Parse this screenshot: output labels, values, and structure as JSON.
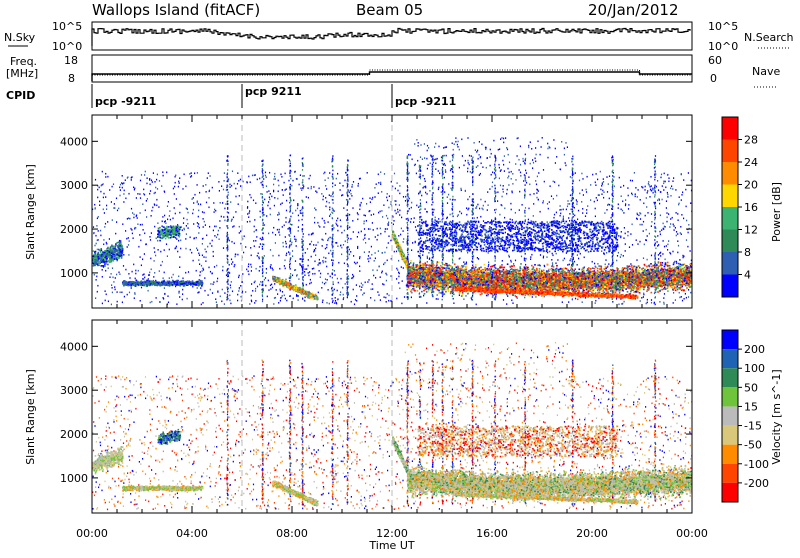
{
  "header": {
    "site": "Wallops Island (fitACF)",
    "beam": "Beam 05",
    "date": "20/Jan/2012"
  },
  "labels": {
    "nsky": "N.Sky",
    "nsearch": "N.Search",
    "freq_line1": "Freq.",
    "freq_line2": "[MHz]",
    "nave": "Nave",
    "cpid": "CPID",
    "nsky_top": "10^5",
    "nsky_bottom": "10^0",
    "freq_top": "18",
    "freq_bottom": "8",
    "nave_top": "60",
    "nave_bottom": "0"
  },
  "cpid_segments": [
    {
      "label": "pcp -9211",
      "start_hour": 0
    },
    {
      "label": "pcp 9211",
      "start_hour": 6
    },
    {
      "label": "pcp -9211",
      "start_hour": 12
    }
  ],
  "colors": {
    "power": [
      "#0000ff",
      "#2e5fb3",
      "#2e8b57",
      "#3cb371",
      "#ffd700",
      "#ff8c00",
      "#ff4500",
      "#ff0000"
    ],
    "velocity": [
      "#0000ff",
      "#1f63b4",
      "#2e8b57",
      "#6ec43a",
      "#bbbbbb",
      "#d9c77a",
      "#ff8c00",
      "#ff4500",
      "#ff0000"
    ]
  },
  "chart_data": [
    {
      "type": "heatmap",
      "name": "power",
      "xlabel": "",
      "ylabel": "Slant Range [km]",
      "xlim": [
        0,
        24
      ],
      "ylim": [
        200,
        4600
      ],
      "x_ticks": [],
      "y_ticks": [
        "1000",
        "2000",
        "3000",
        "4000"
      ],
      "colorbar_label": "Power [dB]",
      "colorbar_ticks": [
        "4",
        "8",
        "12",
        "16",
        "20",
        "24",
        "28"
      ]
    },
    {
      "type": "heatmap",
      "name": "velocity",
      "xlabel": "Time UT",
      "ylabel": "Slant Range [km]",
      "xlim": [
        0,
        24
      ],
      "ylim": [
        200,
        4600
      ],
      "x_ticks": [
        "00:00",
        "04:00",
        "08:00",
        "12:00",
        "16:00",
        "20:00",
        "00:00"
      ],
      "y_ticks": [
        "1000",
        "2000",
        "3000",
        "4000"
      ],
      "colorbar_label": "Velocity [m s^-1]",
      "colorbar_ticks": [
        "200",
        "100",
        "50",
        "15",
        "-15",
        "-50",
        "-100",
        "-200"
      ]
    }
  ]
}
